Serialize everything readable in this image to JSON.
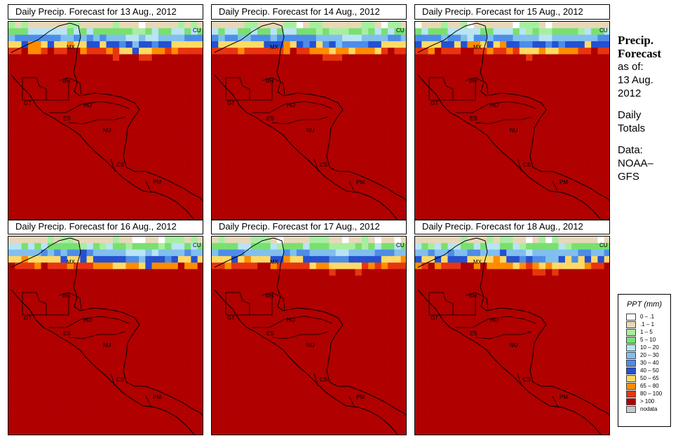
{
  "panels": [
    {
      "title": "Daily Precip. Forecast for  13 Aug., 2012",
      "seed": 13
    },
    {
      "title": "Daily Precip. Forecast for  14 Aug., 2012",
      "seed": 14
    },
    {
      "title": "Daily Precip. Forecast for  15 Aug., 2012",
      "seed": 15
    },
    {
      "title": "Daily Precip. Forecast for  16 Aug., 2012",
      "seed": 16
    },
    {
      "title": "Daily Precip. Forecast for  17 Aug., 2012",
      "seed": 17
    },
    {
      "title": "Daily Precip. Forecast for  18 Aug., 2012",
      "seed": 18
    }
  ],
  "country_labels": [
    "MX",
    "BH",
    "GT",
    "HO",
    "ES",
    "NU",
    "CS",
    "PM",
    "CU"
  ],
  "sidebar": {
    "heading_line1": "Precip.",
    "heading_line2": "Forecast",
    "asof": "as of:",
    "date_line1": "13 Aug.",
    "date_line2": "2012",
    "totals_line1": "Daily",
    "totals_line2": "Totals",
    "data_line1": "Data:",
    "data_line2": "NOAA–",
    "data_line3": "GFS"
  },
  "legend": {
    "title": "PPT (mm)",
    "items": [
      {
        "label": "0 – .1",
        "color": "#ffffff"
      },
      {
        "label": ".1 – 1",
        "color": "#e8d8b8"
      },
      {
        "label": "1 – 5",
        "color": "#a8eea0"
      },
      {
        "label": "5 – 10",
        "color": "#78e070"
      },
      {
        "label": "10 – 20",
        "color": "#b8e4f4"
      },
      {
        "label": "20 – 30",
        "color": "#80bfee"
      },
      {
        "label": "30 – 40",
        "color": "#4d8de8"
      },
      {
        "label": "40 – 50",
        "color": "#2550d0"
      },
      {
        "label": "50 – 65",
        "color": "#ffd966"
      },
      {
        "label": "65 – 80",
        "color": "#ff8c00"
      },
      {
        "label": "80 – 100",
        "color": "#e8350e"
      },
      {
        "label": "> 100",
        "color": "#b00000"
      },
      {
        "label": "nodata",
        "color": "#c8c8c8"
      }
    ]
  }
}
